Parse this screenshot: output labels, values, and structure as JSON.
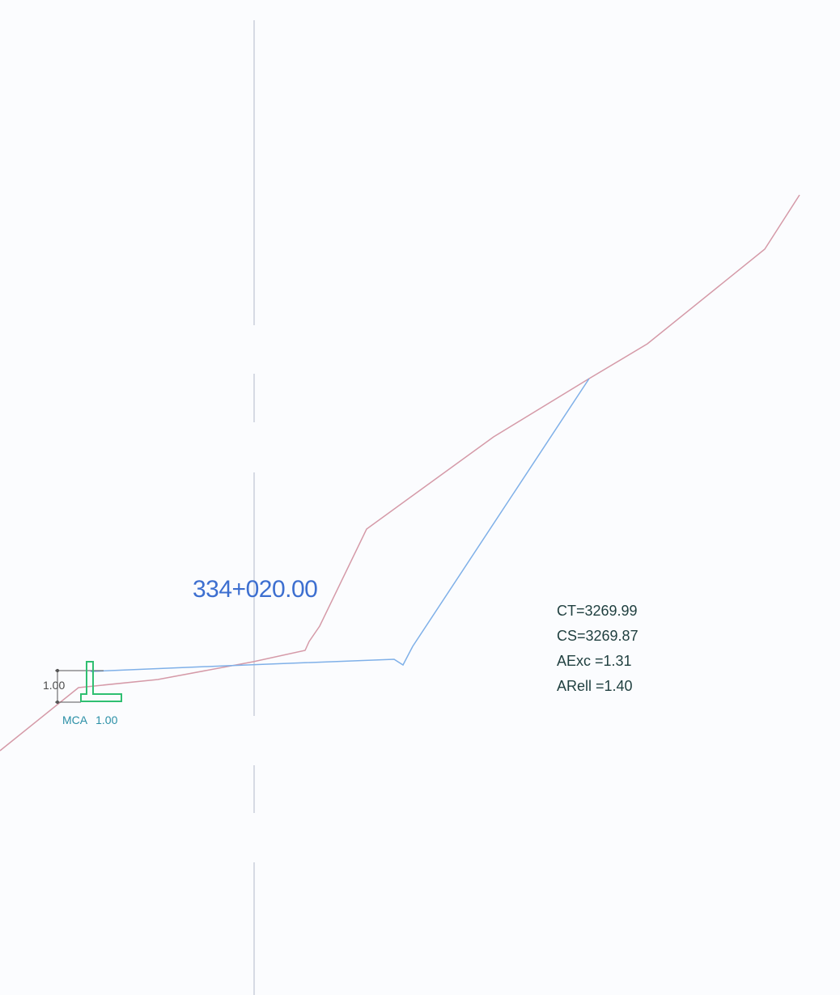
{
  "section": {
    "station": "334+020.00",
    "info": {
      "ct": "CT=3269.99",
      "cs": "CS=3269.87",
      "aexc": "AExc =1.31",
      "arell": "ARell =1.40"
    },
    "wall": {
      "height_label": "1.00",
      "type_label": "MCA",
      "size_label": "1.00"
    }
  },
  "colors": {
    "terrain_line": "#d59aa8",
    "design_line": "#7fb0e8",
    "centerline": "#c9cfdc",
    "wall": "#2fbf71",
    "station_text": "#3d6fd0",
    "info_text": "#1f3f3f",
    "background": "#fbfcfe"
  }
}
